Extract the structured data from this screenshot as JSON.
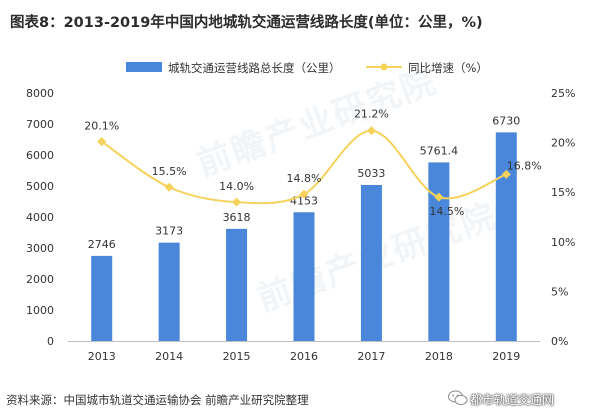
{
  "title": "图表8：2013-2019年中国内地城轨交通运营线路长度(单位：公里，%)",
  "footer": "资料来源：中国城市轨道交通运输协会 前瞻产业研究院整理",
  "watermark": "前瞻产业研究院",
  "wechat_label": "都市轨道交通网",
  "colors": {
    "bar": "#4a86d9",
    "line": "#f7d25a",
    "marker": "#f7d25a",
    "axis_text": "#333333",
    "grid": "#e6e6e6"
  },
  "chart_data": {
    "type": "bar",
    "categories": [
      "2013",
      "2014",
      "2015",
      "2016",
      "2017",
      "2018",
      "2019"
    ],
    "series": [
      {
        "name": "城轨交通运营线路总长度（公里）",
        "type": "bar",
        "axis": "left",
        "values": [
          2746,
          3173,
          3618,
          4153,
          5033,
          5761.4,
          6730
        ],
        "labels": [
          "2746",
          "3173",
          "3618",
          "4153",
          "5033",
          "5761.4",
          "6730"
        ]
      },
      {
        "name": "同比增速（%）",
        "type": "line",
        "axis": "right",
        "values": [
          20.1,
          15.5,
          14.0,
          14.8,
          21.2,
          14.5,
          16.8
        ],
        "labels": [
          "20.1%",
          "15.5%",
          "14.0%",
          "14.8%",
          "21.2%",
          "14.5%",
          "16.8%"
        ]
      }
    ],
    "y_left": {
      "min": 0,
      "max": 8000,
      "ticks": [
        "0",
        "1000",
        "2000",
        "3000",
        "4000",
        "5000",
        "6000",
        "7000",
        "8000"
      ]
    },
    "y_right": {
      "min": 0,
      "max": 25,
      "ticks": [
        "0%",
        "5%",
        "10%",
        "15%",
        "20%",
        "25%"
      ]
    },
    "legend_position": "top-center",
    "grid": false
  }
}
